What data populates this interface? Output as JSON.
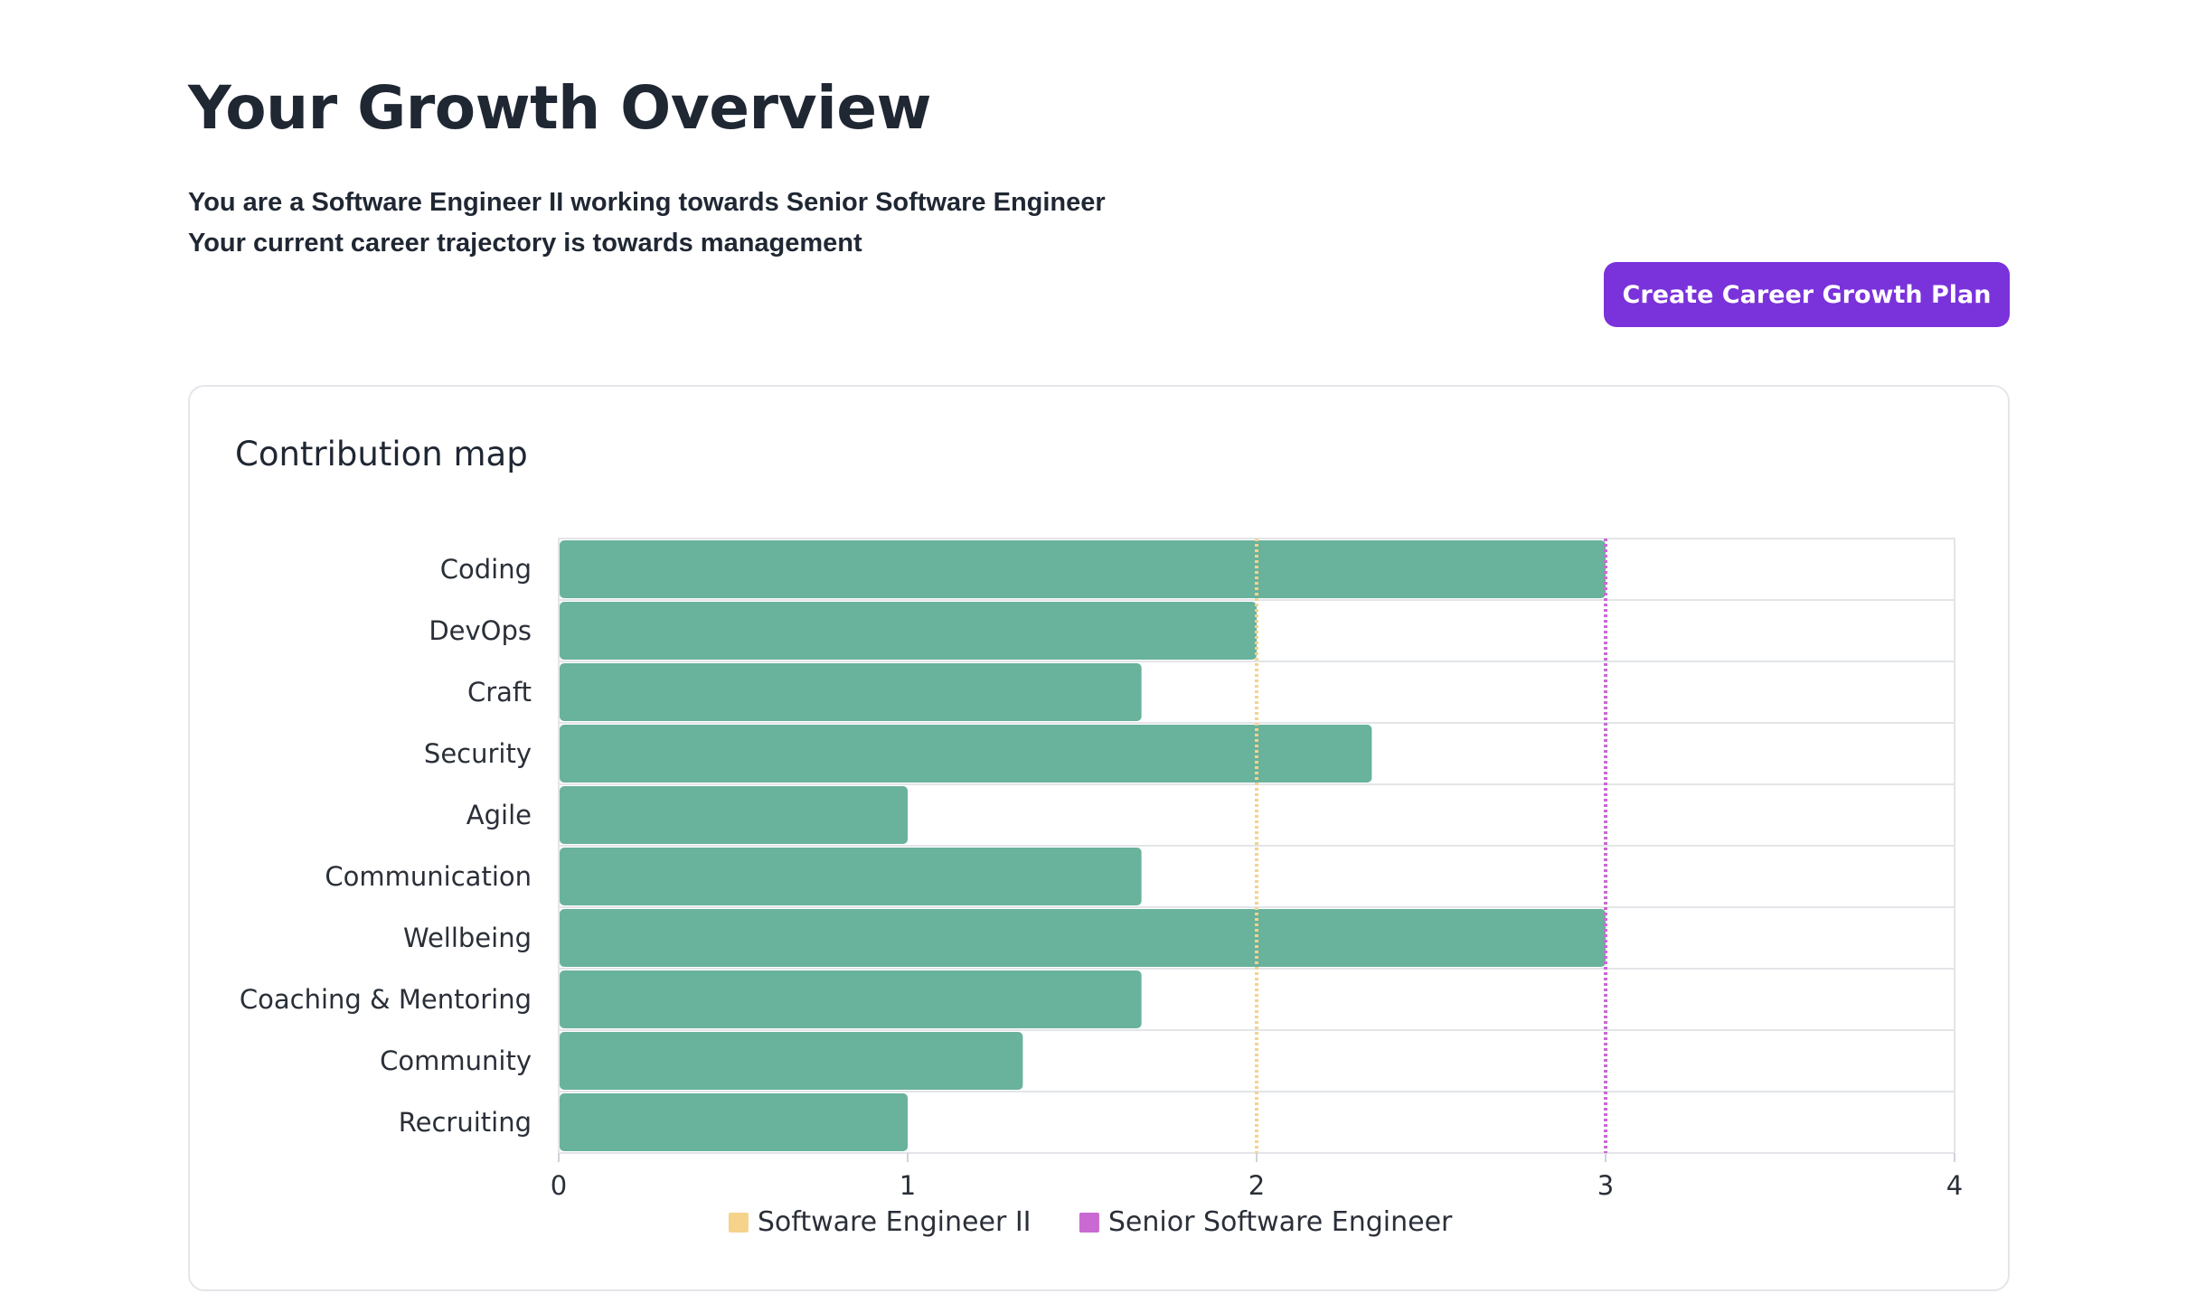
{
  "page": {
    "title": "Your Growth Overview",
    "intro_lines": [
      "You are a Software Engineer II working towards Senior Software Engineer",
      "Your current career trajectory is towards management"
    ],
    "cta_label": "Create Career Growth Plan"
  },
  "panel": {
    "title": "Contribution map"
  },
  "chart_data": {
    "type": "bar",
    "orientation": "horizontal",
    "categories": [
      "Coding",
      "DevOps",
      "Craft",
      "Security",
      "Agile",
      "Communication",
      "Wellbeing",
      "Coaching & Mentoring",
      "Community",
      "Recruiting"
    ],
    "values": [
      3,
      2,
      1.67,
      2.33,
      1,
      1.67,
      3,
      1.67,
      1.33,
      1
    ],
    "xlim": [
      0,
      4
    ],
    "x_ticks": [
      "0",
      "1",
      "2",
      "3",
      "4"
    ],
    "grid": true,
    "legend_position": "bottom",
    "bar_color": "#69b29c",
    "reference_lines": [
      {
        "name": "Software Engineer II",
        "value": 2,
        "color": "#f5d38b"
      },
      {
        "name": "Senior Software Engineer",
        "value": 3,
        "color": "#c86ad2"
      }
    ]
  }
}
